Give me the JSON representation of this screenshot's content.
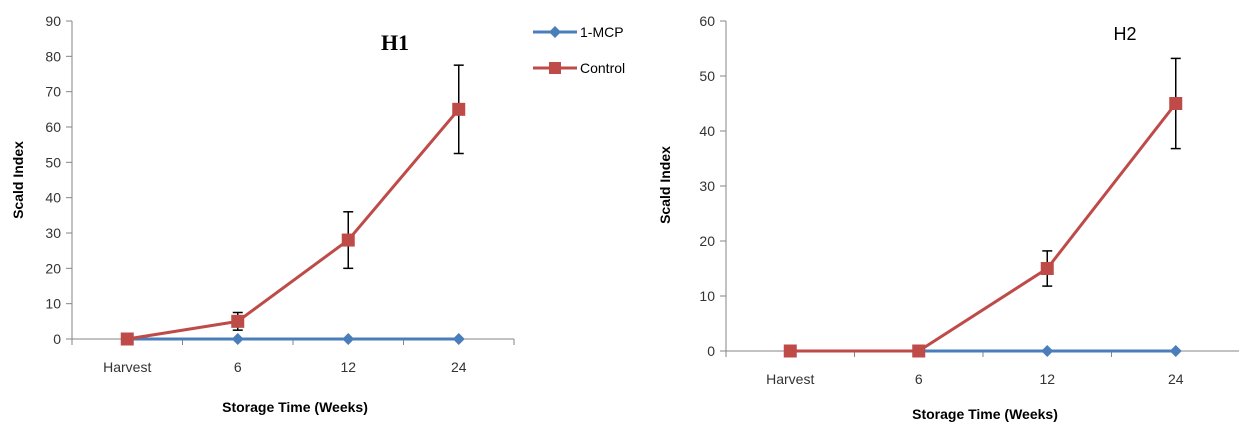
{
  "colors": {
    "mcp": "#4a7ebb",
    "control": "#be4b48",
    "axis": "#868686",
    "error": "#000000"
  },
  "legend": [
    {
      "label": "1-MCP",
      "color": "#4a7ebb",
      "marker": "diamond"
    },
    {
      "label": "Control",
      "color": "#be4b48",
      "marker": "square"
    }
  ],
  "chart_data": [
    {
      "type": "line",
      "title": "H1",
      "xlabel": "Storage Time (Weeks)",
      "ylabel": "Scald Index",
      "categories": [
        "Harvest",
        "6",
        "12",
        "24"
      ],
      "ylim": [
        0,
        90
      ],
      "yticks": [
        0,
        10,
        20,
        30,
        40,
        50,
        60,
        70,
        80,
        90
      ],
      "grid": false,
      "legend_position": "right",
      "series": [
        {
          "name": "1-MCP",
          "values": [
            0,
            0,
            0,
            0
          ],
          "errors": [
            0,
            0,
            0,
            0
          ]
        },
        {
          "name": "Control",
          "values": [
            0,
            5,
            28,
            65
          ],
          "errors": [
            0,
            2.5,
            8,
            12.5
          ]
        }
      ]
    },
    {
      "type": "line",
      "title": "H2",
      "xlabel": "Storage Time (Weeks)",
      "ylabel": "Scald Index",
      "categories": [
        "Harvest",
        "6",
        "12",
        "24"
      ],
      "ylim": [
        0,
        60
      ],
      "yticks": [
        0,
        10,
        20,
        30,
        40,
        50,
        60
      ],
      "grid": false,
      "series": [
        {
          "name": "1-MCP",
          "values": [
            0,
            0,
            0,
            0
          ],
          "errors": [
            0,
            0,
            0,
            0
          ]
        },
        {
          "name": "Control",
          "values": [
            0,
            0,
            15,
            45
          ],
          "errors": [
            0,
            0,
            3.2,
            8.2
          ]
        }
      ]
    }
  ]
}
